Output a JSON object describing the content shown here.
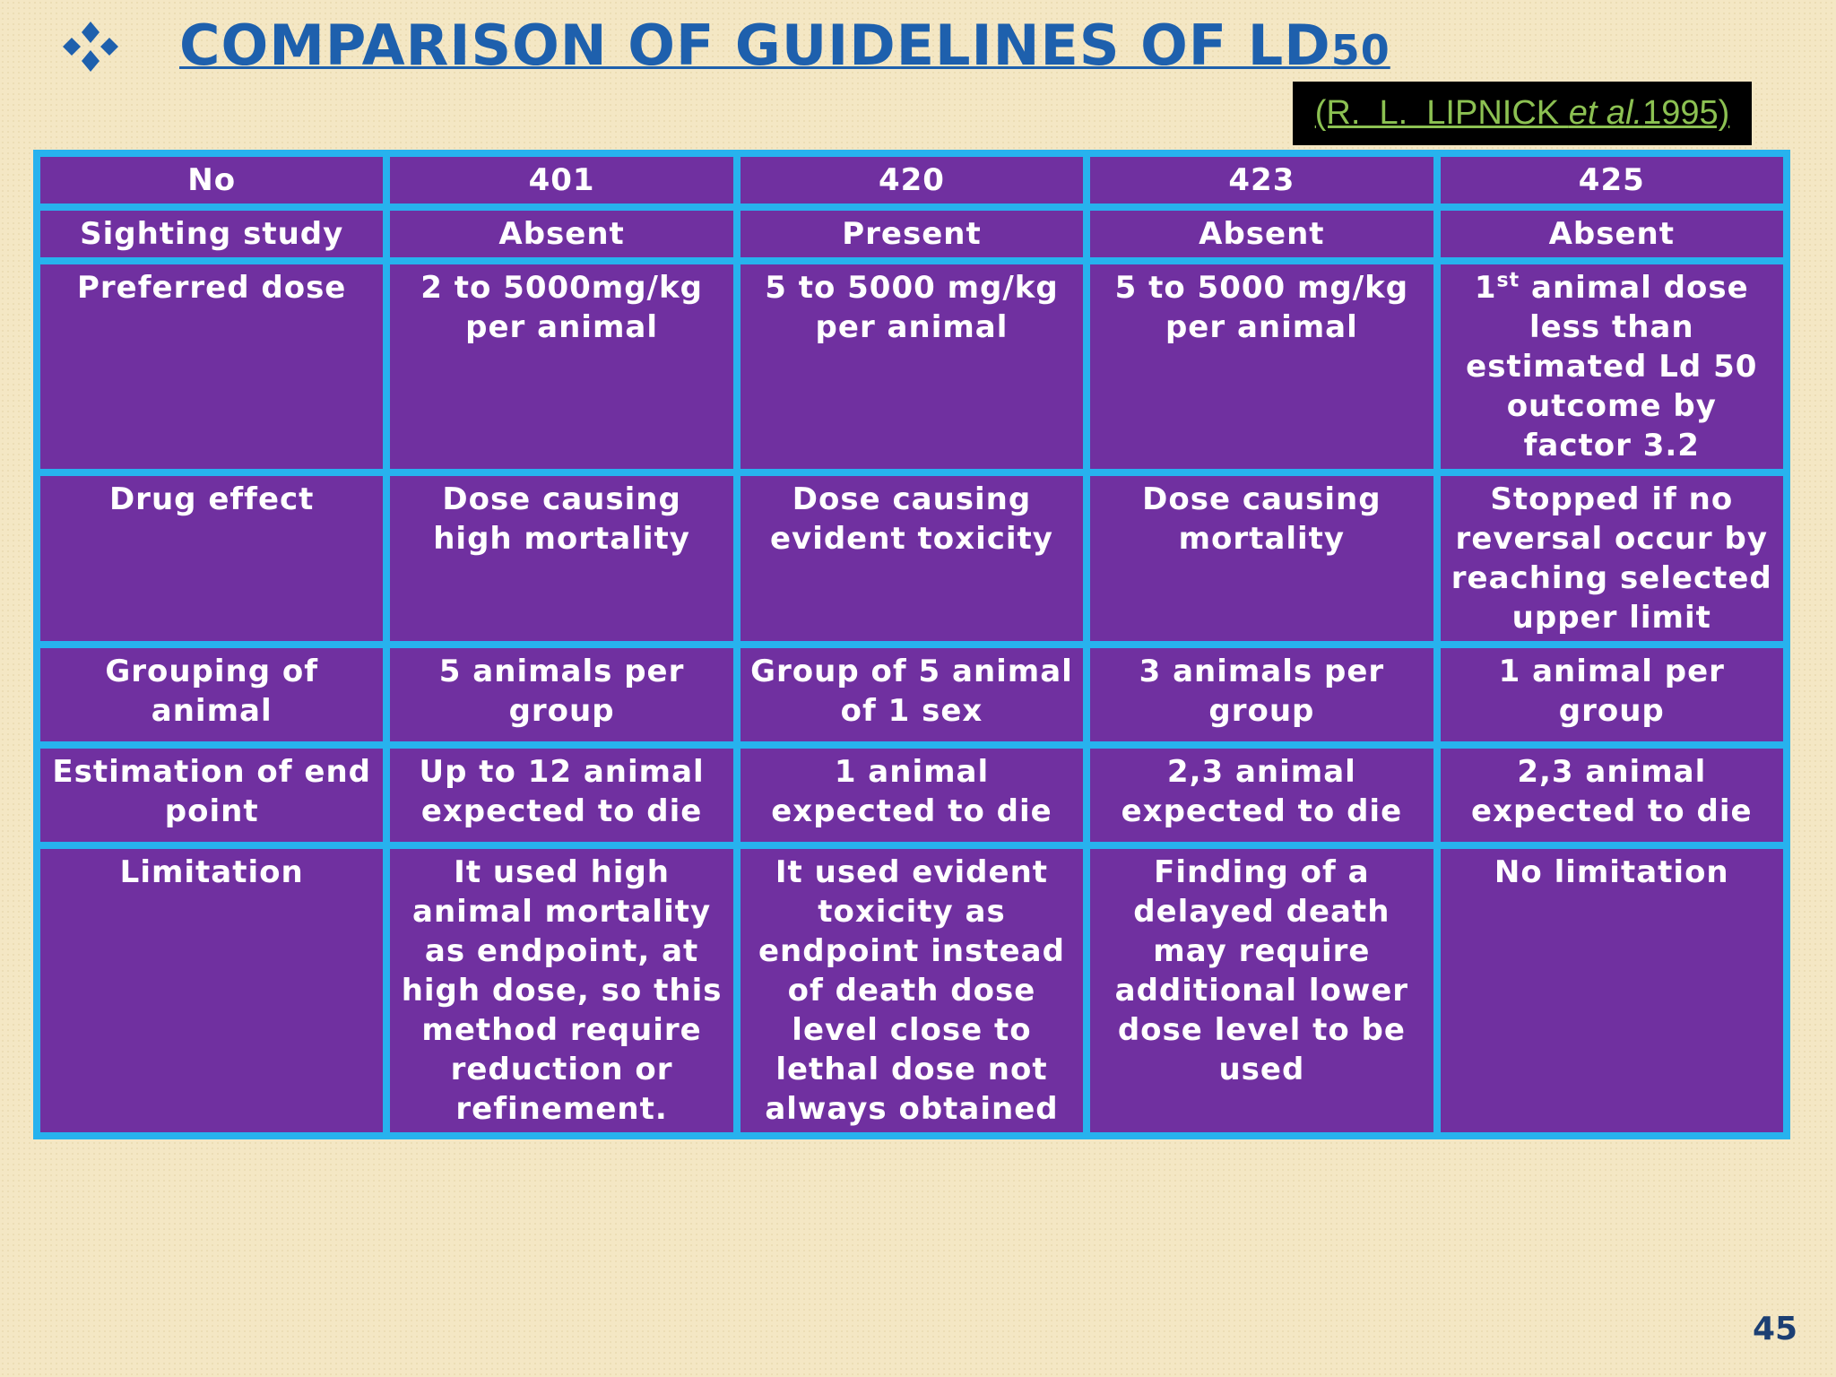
{
  "header": {
    "title": {
      "main": "COMPARISON OF GUIDELINES OF LD",
      "subscript": "50"
    },
    "citation": {
      "authors": "(R.  L.  LIPNICK ",
      "etal": "et al.",
      "year": "1995)"
    }
  },
  "table": {
    "columns": [
      "No",
      "401",
      "420",
      "423",
      "425"
    ],
    "rows": [
      [
        "Sighting  study",
        "Absent",
        "Present",
        "Absent",
        "Absent"
      ],
      [
        "Preferred dose",
        "2 to 5000mg/kg per animal",
        "5 to 5000 mg/kg per animal",
        "5 to 5000 mg/kg per animal",
        {
          "base": "1",
          "superscript": "st",
          "text": " animal  dose less than estimated  Ld 50 outcome by factor 3.2"
        }
      ],
      [
        "Drug effect",
        "Dose causing high mortality",
        "Dose causing evident toxicity",
        "Dose causing mortality",
        "Stopped  if no reversal  occur by reaching selected upper limit"
      ],
      [
        "Grouping of animal",
        "5 animals per group",
        "Group of 5 animal  of  1 sex",
        "3 animals  per group",
        "1 animal  per group"
      ],
      [
        "Estimation of end point",
        "Up to 12 animal expected to die",
        "1 animal expected  to die",
        "2,3 animal expected to die",
        "2,3 animal expected  to die"
      ],
      [
        "Limitation",
        "It used high animal mortality as endpoint, at high dose, so this method require reduction or refinement.",
        "It used evident toxicity as endpoint instead of death  dose level close to lethal dose not always obtained",
        "Finding of a delayed death may require additional lower dose level to be used",
        "No limitation"
      ]
    ]
  },
  "page_number": "45"
}
